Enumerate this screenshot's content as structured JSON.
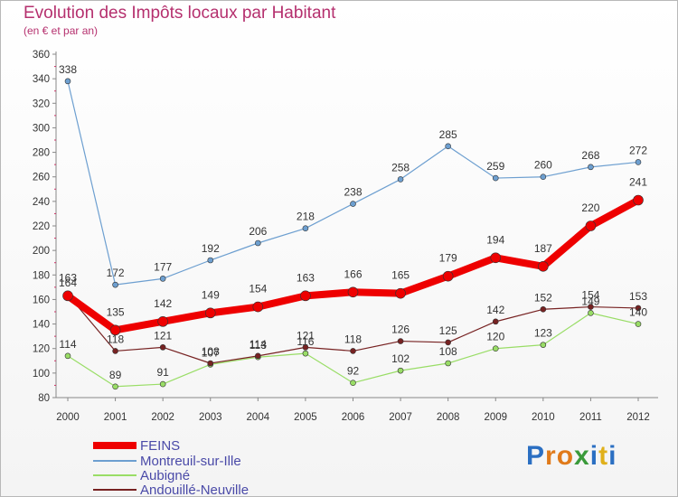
{
  "chart_data": {
    "type": "line",
    "title": "Evolution des Impôts locaux par Habitant",
    "subtitle": "(en € et par an)",
    "x": [
      "2000",
      "2001",
      "2002",
      "2003",
      "2004",
      "2005",
      "2006",
      "2007",
      "2008",
      "2009",
      "2010",
      "2011",
      "2012"
    ],
    "ylim": [
      80,
      360
    ],
    "yticks": [
      80,
      100,
      120,
      140,
      160,
      180,
      200,
      220,
      240,
      260,
      280,
      300,
      320,
      340,
      360
    ],
    "grid": false,
    "legend_position": "bottom-left",
    "series": [
      {
        "name": "FEINS",
        "color": "#ee0000",
        "values": [
          163,
          135,
          142,
          149,
          154,
          163,
          166,
          165,
          179,
          194,
          187,
          220,
          241
        ]
      },
      {
        "name": "Montreuil-sur-Ille",
        "color": "#6d9fd0",
        "values": [
          338,
          172,
          177,
          192,
          206,
          218,
          238,
          258,
          285,
          259,
          260,
          268,
          272
        ]
      },
      {
        "name": "Aubigné",
        "color": "#99dd66",
        "values": [
          114,
          89,
          91,
          107,
          113,
          116,
          92,
          102,
          108,
          120,
          123,
          149,
          140
        ]
      },
      {
        "name": "Andouillé-Neuville",
        "color": "#772222",
        "values": [
          164,
          118,
          121,
          108,
          114,
          121,
          118,
          126,
          125,
          142,
          152,
          154,
          153
        ]
      }
    ]
  },
  "logo": {
    "letters": [
      "P",
      "r",
      "o",
      "x",
      "i",
      "t",
      "i"
    ],
    "colors": [
      "#2b6fc2",
      "#e07a1a",
      "#e07a1a",
      "#3a9a3a",
      "#2b6fc2",
      "#e0b01a",
      "#2b6fc2"
    ]
  }
}
